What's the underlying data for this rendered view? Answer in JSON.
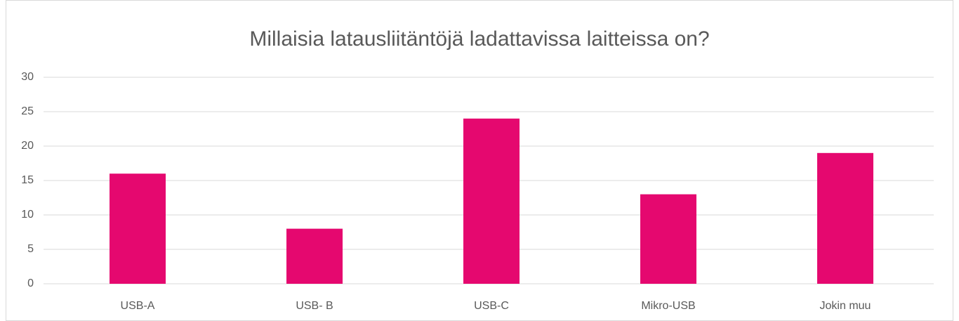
{
  "chart_data": {
    "type": "bar",
    "title": "Millaisia latausliitäntöjä ladattavissa laitteissa on?",
    "categories": [
      "USB-A",
      "USB- B",
      "USB-C",
      "Mikro-USB",
      "Jokin muu"
    ],
    "values": [
      16,
      8,
      24,
      13,
      19
    ],
    "color": "#e5086f",
    "ylim": [
      0,
      30
    ],
    "yticks": [
      0,
      5,
      10,
      15,
      20,
      25,
      30
    ],
    "grid": true
  }
}
